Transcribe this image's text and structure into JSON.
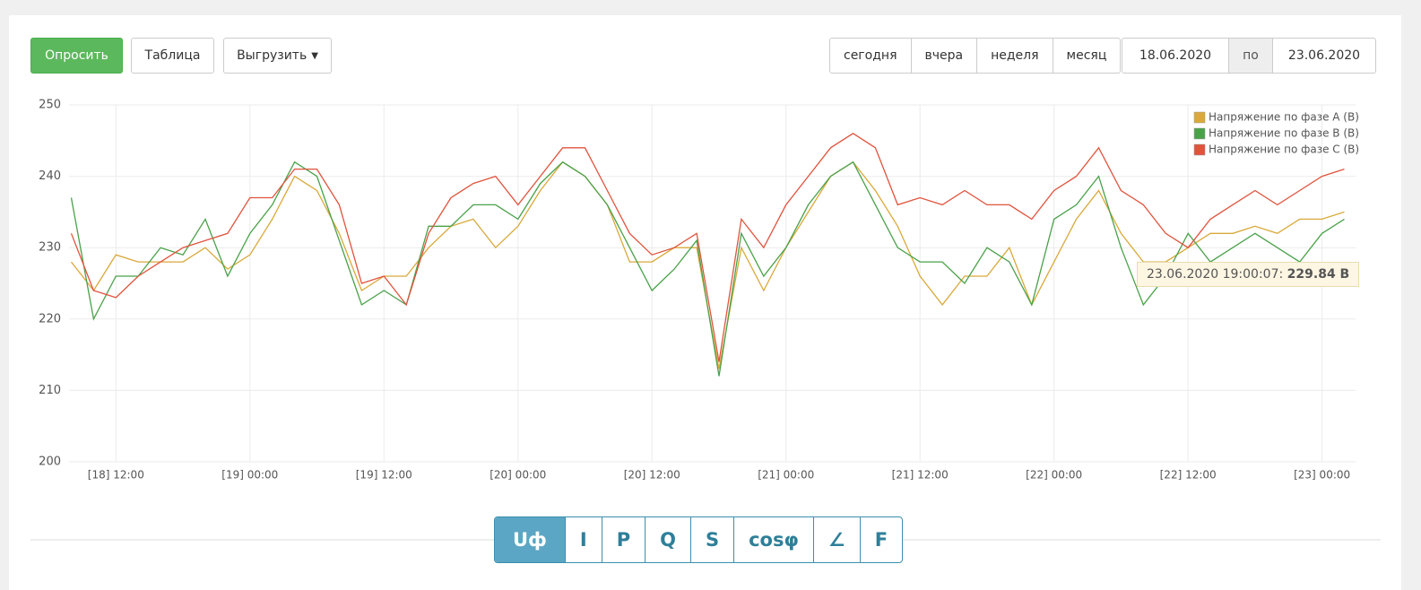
{
  "toolbar": {
    "buttons": [
      "Опросить",
      "Таблица",
      "Выгрузить"
    ],
    "periods": [
      "сегодня",
      "вчера",
      "неделя",
      "месяц"
    ],
    "date_from": "18.06.2020",
    "date_sep": "по",
    "date_to": "23.06.2020"
  },
  "chart_data": {
    "type": "line",
    "x": [
      8,
      10,
      12,
      14,
      16,
      18,
      20,
      22,
      24,
      26,
      28,
      30,
      32,
      34,
      36,
      38,
      40,
      42,
      44,
      46,
      48,
      50,
      52,
      54,
      56,
      58,
      60,
      62,
      64,
      66,
      68,
      70,
      72,
      74,
      76,
      78,
      80,
      82,
      84,
      86,
      88,
      90,
      92,
      94,
      96,
      98,
      100,
      102,
      104,
      106,
      108,
      110,
      112,
      114,
      116,
      118,
      120,
      122
    ],
    "xlim": [
      7.8,
      123
    ],
    "xticks": [
      {
        "value": 12,
        "label": "[18] 12:00"
      },
      {
        "value": 24,
        "label": "[19] 00:00"
      },
      {
        "value": 36,
        "label": "[19] 12:00"
      },
      {
        "value": 48,
        "label": "[20] 00:00"
      },
      {
        "value": 60,
        "label": "[20] 12:00"
      },
      {
        "value": 72,
        "label": "[21] 00:00"
      },
      {
        "value": 84,
        "label": "[21] 12:00"
      },
      {
        "value": 96,
        "label": "[22] 00:00"
      },
      {
        "value": 108,
        "label": "[22] 12:00"
      },
      {
        "value": 120,
        "label": "[23] 00:00"
      }
    ],
    "ylim": [
      200,
      250
    ],
    "yticks": [
      200,
      210,
      220,
      230,
      240,
      250
    ],
    "grid": true,
    "legend": "top-right",
    "series": [
      {
        "name": "Напряжение по фазе A (В)",
        "color": "#d9a93a",
        "values": [
          228,
          224,
          229,
          228,
          228,
          228,
          230,
          227,
          229,
          234,
          240,
          238,
          232,
          224,
          226,
          226,
          230,
          233,
          234,
          230,
          233,
          238,
          242,
          240,
          236,
          228,
          228,
          230,
          230,
          213,
          230,
          224,
          230,
          235,
          240,
          242,
          238,
          233,
          226,
          222,
          226,
          226,
          230,
          222,
          228,
          234,
          238,
          232,
          228,
          228,
          230,
          232,
          232,
          233,
          232,
          234,
          234,
          235
        ]
      },
      {
        "name": "Напряжение по фазе B (В)",
        "color": "#4aa14a",
        "values": [
          237,
          220,
          226,
          226,
          230,
          229,
          234,
          226,
          232,
          236,
          242,
          240,
          231,
          222,
          224,
          222,
          233,
          233,
          236,
          236,
          234,
          239,
          242,
          240,
          236,
          230,
          224,
          227,
          231,
          212,
          232,
          226,
          230,
          236,
          240,
          242,
          236,
          230,
          228,
          228,
          225,
          230,
          228,
          222,
          234,
          236,
          240,
          230,
          222,
          226,
          232,
          228,
          230,
          232,
          230,
          228,
          232,
          234
        ]
      },
      {
        "name": "Напряжение по фазе C (В)",
        "color": "#e0533d",
        "values": [
          232,
          224,
          223,
          226,
          228,
          230,
          231,
          232,
          237,
          237,
          241,
          241,
          236,
          225,
          226,
          222,
          232,
          237,
          239,
          240,
          236,
          240,
          244,
          244,
          238,
          232,
          229,
          230,
          232,
          214,
          234,
          230,
          236,
          240,
          244,
          246,
          244,
          236,
          237,
          236,
          238,
          236,
          236,
          234,
          238,
          240,
          244,
          238,
          236,
          232,
          230,
          234,
          236,
          238,
          236,
          238,
          240,
          241
        ]
      }
    ]
  },
  "tooltip": {
    "label": "23.06.2020 19:00:07:",
    "value": "229.84 В"
  },
  "tabs": [
    "Uф",
    "I",
    "P",
    "Q",
    "S",
    "cosφ",
    "∠",
    "F"
  ]
}
